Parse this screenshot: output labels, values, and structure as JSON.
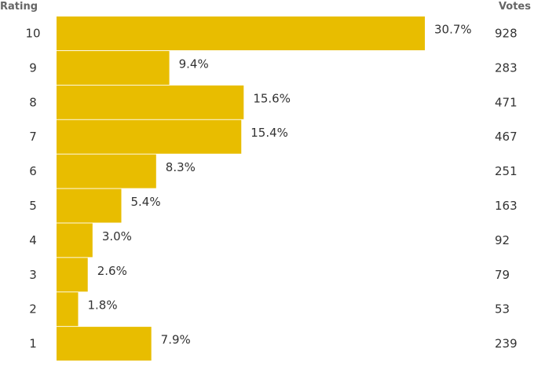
{
  "chart_data": {
    "type": "bar",
    "orientation": "horizontal",
    "column_headers": {
      "category": "Rating",
      "votes": "Votes"
    },
    "categories": [
      "10",
      "9",
      "8",
      "7",
      "6",
      "5",
      "4",
      "3",
      "2",
      "1"
    ],
    "values": [
      30.7,
      9.4,
      15.6,
      15.4,
      8.3,
      5.4,
      3.0,
      2.6,
      1.8,
      7.9
    ],
    "value_labels": [
      "30.7%",
      "9.4%",
      "15.6%",
      "15.4%",
      "8.3%",
      "5.4%",
      "3.0%",
      "2.6%",
      "1.8%",
      "7.9%"
    ],
    "votes": [
      "928",
      "283",
      "471",
      "467",
      "251",
      "163",
      "92",
      "79",
      "53",
      "239"
    ],
    "unit": "%",
    "bar_color": "#e8bd00",
    "grid": false,
    "legend": "none"
  }
}
